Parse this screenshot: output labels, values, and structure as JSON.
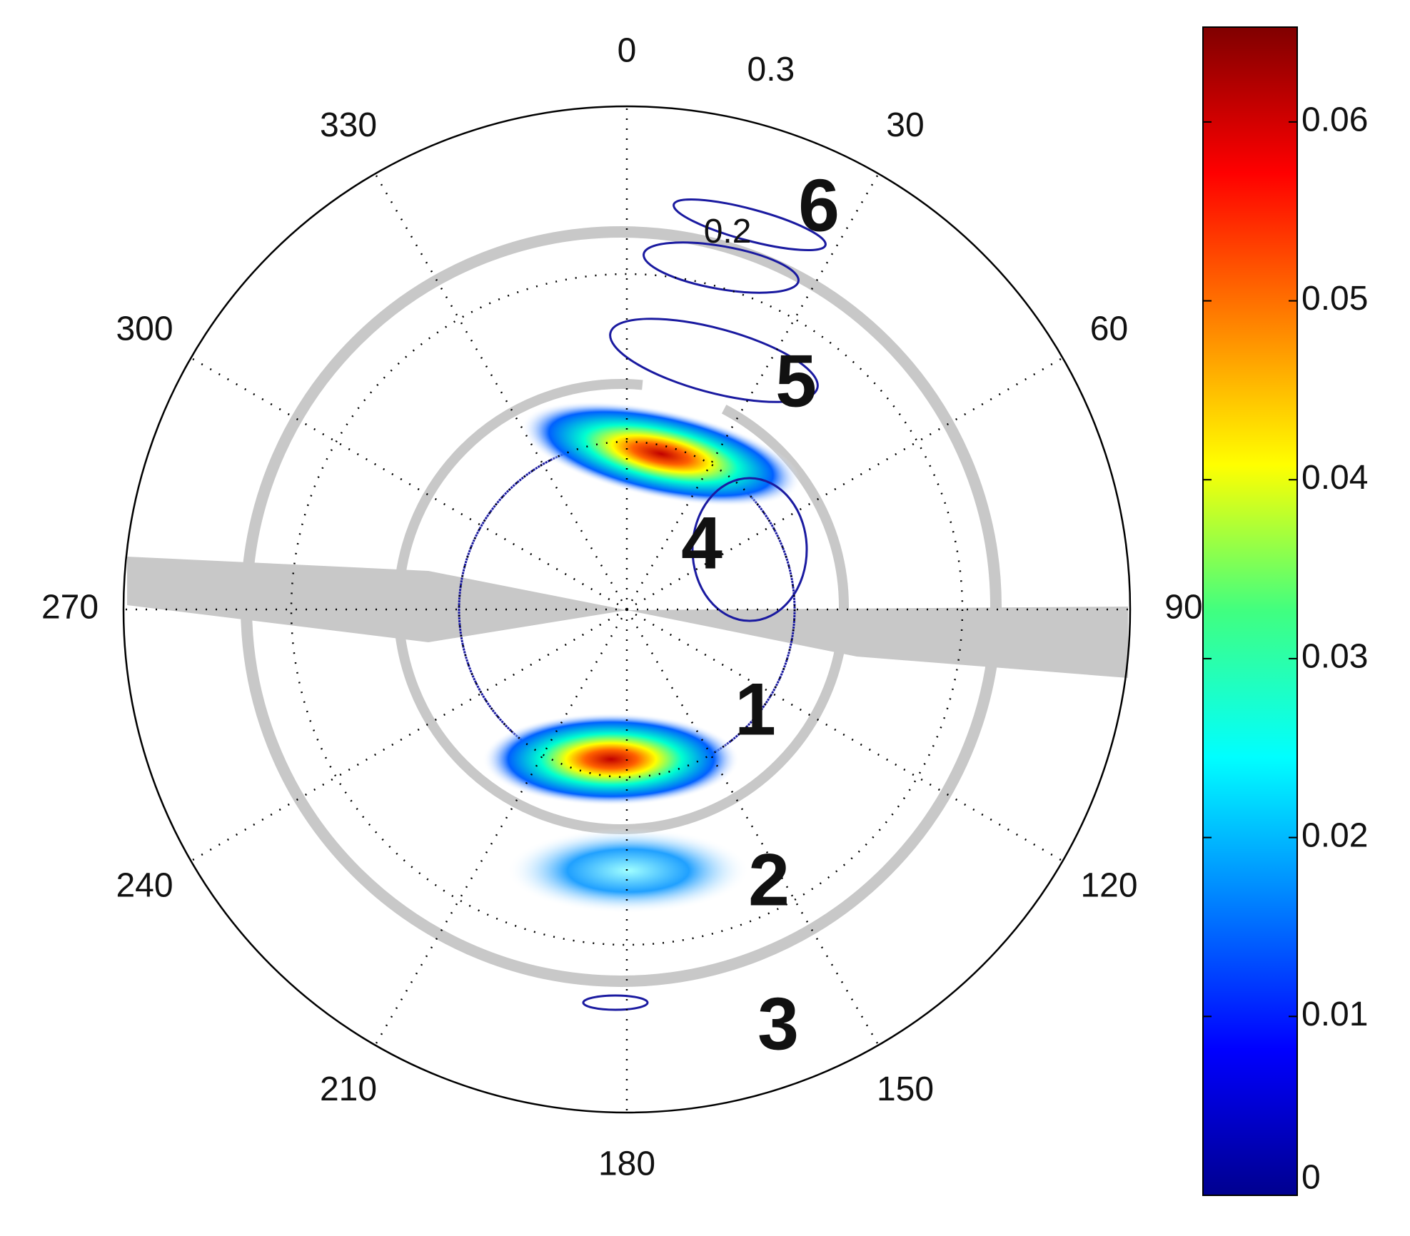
{
  "chart_data": {
    "type": "polar",
    "thetaticks": [
      0,
      30,
      60,
      90,
      120,
      150,
      180,
      210,
      240,
      270,
      300,
      330
    ],
    "rlim": [
      0,
      0.3
    ],
    "rticks": [
      0.2,
      0.3
    ],
    "colorbar": {
      "clim": [
        0,
        0.0653
      ],
      "ticks": [
        0,
        0.01,
        0.02,
        0.03,
        0.04,
        0.05,
        0.06
      ]
    },
    "annotations": [
      "6",
      "5",
      "4",
      "1",
      "2",
      "3"
    ]
  }
}
